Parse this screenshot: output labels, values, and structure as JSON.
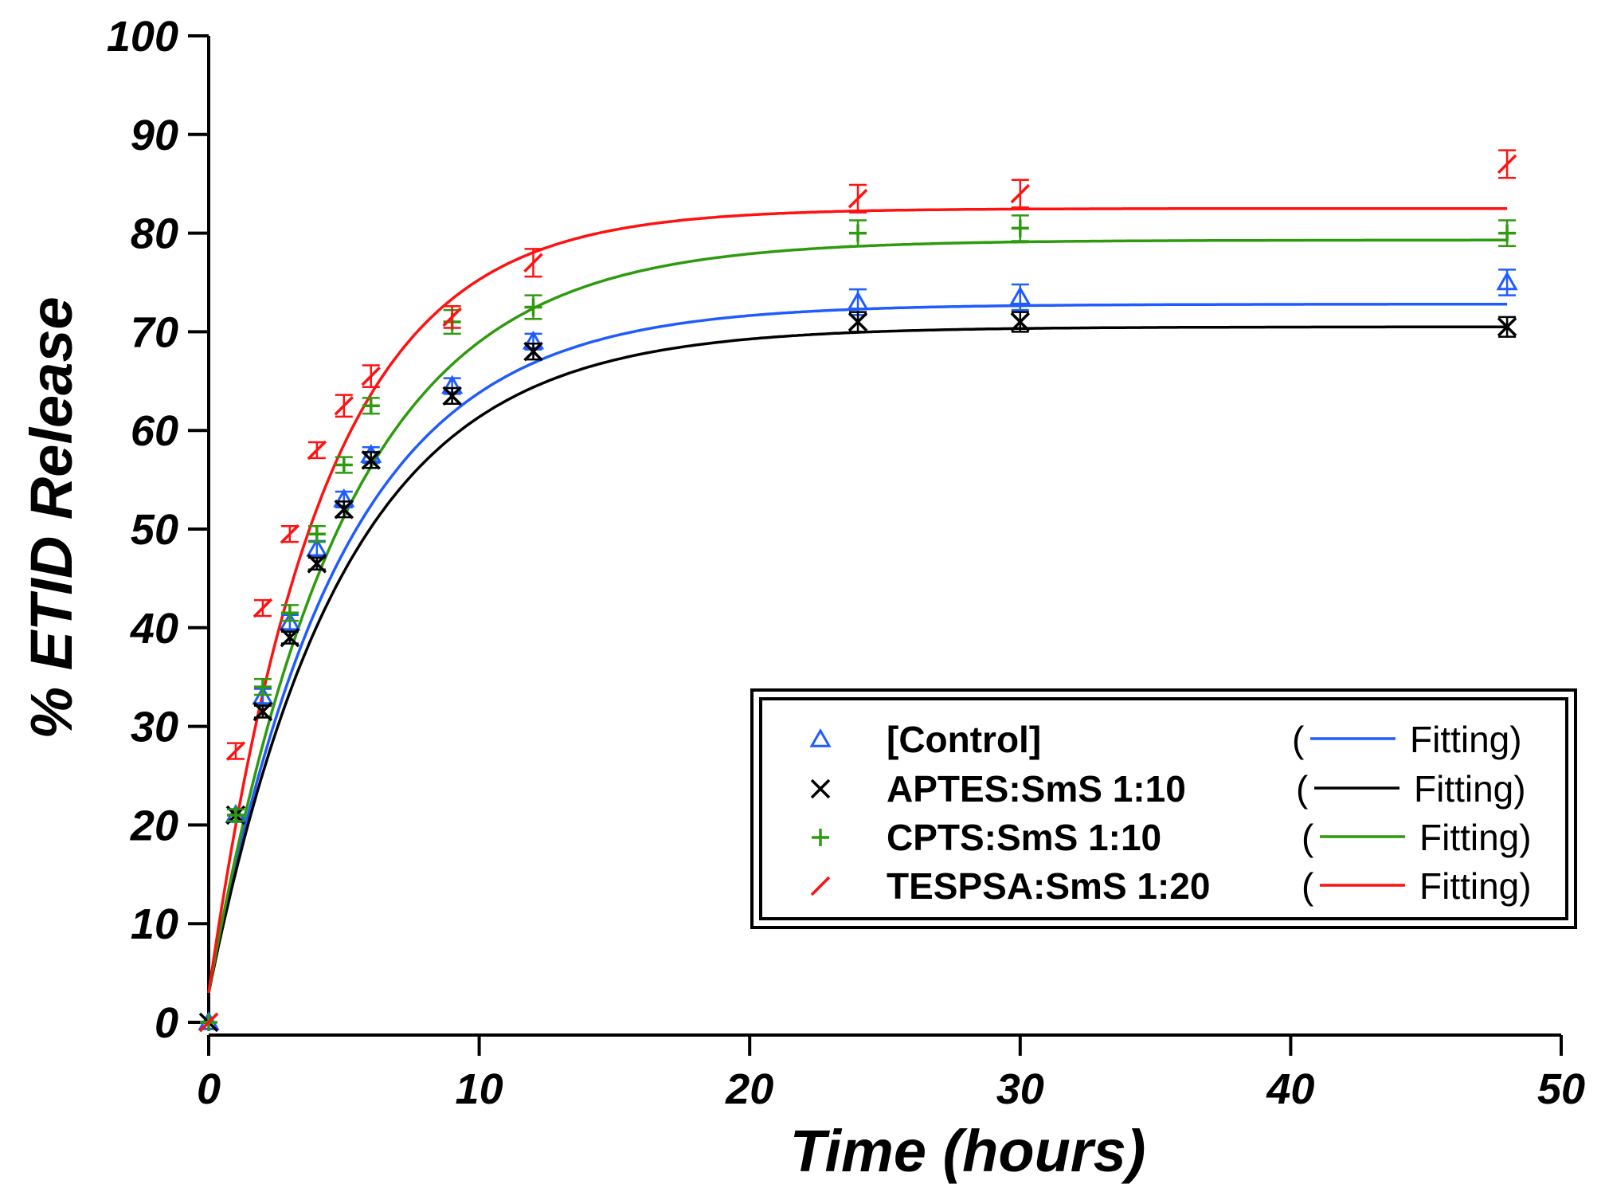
{
  "chart_data": {
    "type": "scatter",
    "title": "",
    "xlabel": "Time (hours)",
    "ylabel": "% ETID Release",
    "xlim": [
      0,
      50
    ],
    "ylim": [
      0,
      100
    ],
    "xticks": [
      0,
      10,
      20,
      30,
      40,
      50
    ],
    "yticks": [
      0,
      10,
      20,
      30,
      40,
      50,
      60,
      70,
      80,
      90,
      100
    ],
    "legend_position": "bottom-right",
    "fit_label": "Fitting",
    "x": [
      0,
      1,
      2,
      3,
      4,
      5,
      6,
      9,
      12,
      24,
      30,
      48
    ],
    "series": [
      {
        "name": "[Control]",
        "color": "#1f5cff",
        "marker": "triangle",
        "values": [
          0,
          21,
          33,
          40.5,
          48,
          53,
          57.5,
          64.5,
          69,
          73,
          73.5,
          75
        ],
        "errors": [
          0.4,
          0.6,
          0.8,
          0.8,
          0.8,
          0.8,
          0.8,
          0.8,
          0.8,
          1.3,
          1.3,
          1.3
        ],
        "fit": {
          "plateau": 72.8,
          "k": 0.205,
          "y0": 3
        }
      },
      {
        "name": "APTES:SmS 1:10",
        "color": "#000000",
        "marker": "x",
        "values": [
          0,
          21,
          31.5,
          39,
          46.5,
          52,
          57,
          63.5,
          68,
          71,
          71,
          70.5
        ],
        "errors": [
          0.4,
          0.6,
          0.6,
          0.6,
          0.6,
          0.8,
          0.8,
          0.8,
          0.8,
          1,
          1,
          1
        ],
        "fit": {
          "plateau": 70.5,
          "k": 0.2,
          "y0": 3
        }
      },
      {
        "name": "CPTS:SmS 1:10",
        "color": "#2e9a0e",
        "marker": "plus",
        "values": [
          0,
          21,
          34,
          41.5,
          49.5,
          56.5,
          62.5,
          71,
          72.5,
          80,
          80.5,
          80
        ],
        "errors": [
          0.4,
          0.6,
          0.8,
          0.8,
          0.8,
          0.8,
          0.8,
          1.2,
          1.2,
          1.3,
          1.3,
          1.3
        ],
        "fit": {
          "plateau": 79.3,
          "k": 0.2,
          "y0": 3
        }
      },
      {
        "name": "TESPSA:SmS 1:20",
        "color": "#ff1111",
        "marker": "slash",
        "values": [
          0,
          27.5,
          42,
          49.5,
          58,
          62.5,
          65.5,
          71.5,
          77,
          83.5,
          84,
          87
        ],
        "errors": [
          0.4,
          0.8,
          0.8,
          0.8,
          0.8,
          1.1,
          1.1,
          1.1,
          1.4,
          1.4,
          1.4,
          1.4
        ],
        "fit": {
          "plateau": 82.5,
          "k": 0.24,
          "y0": 3
        }
      }
    ]
  }
}
